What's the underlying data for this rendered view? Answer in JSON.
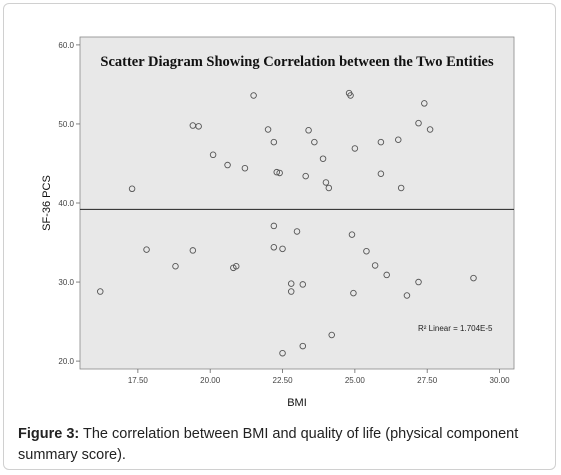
{
  "chart_data": {
    "type": "scatter",
    "title": "Scatter Diagram Showing Correlation between the Two Entities",
    "xlabel": "BMI",
    "ylabel": "SF-36 PCS",
    "xlim": [
      15.5,
      30.5
    ],
    "ylim": [
      19,
      61
    ],
    "x_ticks": [
      17.5,
      20,
      22.5,
      25,
      27.5,
      30
    ],
    "x_tick_labels": [
      "17.50",
      "20.00",
      "22.50",
      "25.00",
      "27.50",
      "30.00"
    ],
    "y_ticks": [
      20,
      30,
      40,
      50,
      60
    ],
    "y_tick_labels": [
      "20.0",
      "30.0",
      "40.0",
      "50.0",
      "60.0"
    ],
    "grid": false,
    "fit_line": {
      "label": "R² Linear = 1.704E-5",
      "y_at_xmin": 39.2,
      "y_at_xmax": 39.2
    },
    "marker_color": "#555555",
    "plot_background": "#e8e8e8",
    "points": [
      {
        "x": 16.2,
        "y": 28.8
      },
      {
        "x": 17.3,
        "y": 41.8
      },
      {
        "x": 17.8,
        "y": 34.1
      },
      {
        "x": 18.8,
        "y": 32.0
      },
      {
        "x": 19.4,
        "y": 34.0
      },
      {
        "x": 19.4,
        "y": 49.8
      },
      {
        "x": 19.6,
        "y": 49.7
      },
      {
        "x": 20.1,
        "y": 46.1
      },
      {
        "x": 20.6,
        "y": 44.8
      },
      {
        "x": 20.8,
        "y": 31.8
      },
      {
        "x": 20.9,
        "y": 32.0
      },
      {
        "x": 21.2,
        "y": 44.4
      },
      {
        "x": 21.5,
        "y": 53.6
      },
      {
        "x": 22.0,
        "y": 49.3
      },
      {
        "x": 22.2,
        "y": 47.7
      },
      {
        "x": 22.2,
        "y": 37.1
      },
      {
        "x": 22.2,
        "y": 34.4
      },
      {
        "x": 22.3,
        "y": 43.9
      },
      {
        "x": 22.4,
        "y": 43.8
      },
      {
        "x": 22.5,
        "y": 34.2
      },
      {
        "x": 22.5,
        "y": 21.0
      },
      {
        "x": 22.8,
        "y": 29.8
      },
      {
        "x": 22.8,
        "y": 28.8
      },
      {
        "x": 23.0,
        "y": 36.4
      },
      {
        "x": 23.2,
        "y": 29.7
      },
      {
        "x": 23.2,
        "y": 21.9
      },
      {
        "x": 23.3,
        "y": 43.4
      },
      {
        "x": 23.4,
        "y": 49.2
      },
      {
        "x": 23.6,
        "y": 47.7
      },
      {
        "x": 23.9,
        "y": 45.6
      },
      {
        "x": 24.0,
        "y": 42.6
      },
      {
        "x": 24.1,
        "y": 41.9
      },
      {
        "x": 24.2,
        "y": 23.3
      },
      {
        "x": 24.8,
        "y": 53.9
      },
      {
        "x": 24.85,
        "y": 53.6
      },
      {
        "x": 24.9,
        "y": 36.0
      },
      {
        "x": 24.95,
        "y": 28.6
      },
      {
        "x": 25.0,
        "y": 46.9
      },
      {
        "x": 25.4,
        "y": 33.9
      },
      {
        "x": 25.7,
        "y": 32.1
      },
      {
        "x": 25.9,
        "y": 47.7
      },
      {
        "x": 25.9,
        "y": 43.7
      },
      {
        "x": 26.1,
        "y": 30.9
      },
      {
        "x": 26.5,
        "y": 48.0
      },
      {
        "x": 26.6,
        "y": 41.9
      },
      {
        "x": 26.8,
        "y": 28.3
      },
      {
        "x": 27.2,
        "y": 50.1
      },
      {
        "x": 27.2,
        "y": 30.0
      },
      {
        "x": 27.4,
        "y": 52.6
      },
      {
        "x": 27.6,
        "y": 49.3
      },
      {
        "x": 29.1,
        "y": 30.5
      }
    ]
  },
  "caption": {
    "label": "Figure 3:",
    "text": " The correlation between BMI and quality of life (physical component summary score)."
  }
}
